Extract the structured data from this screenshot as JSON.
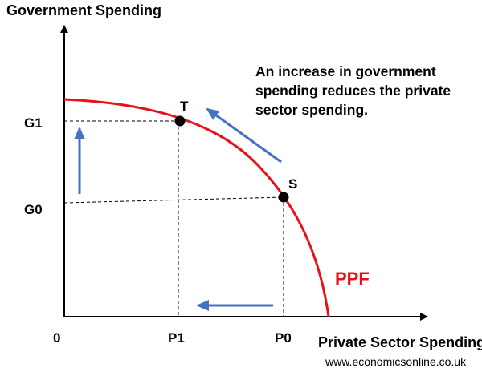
{
  "y_axis_title": "Government Spending",
  "x_axis_title": "Private Sector Spending",
  "annotation": "An increase in government spending reduces the private sector spending.",
  "curve_label": "PPF",
  "origin_label": "0",
  "y_ticks": {
    "g1": "G1",
    "g0": "G0"
  },
  "x_ticks": {
    "p1": "P1",
    "p0": "P0"
  },
  "points": {
    "t": "T",
    "s": "S"
  },
  "watermark": "www.economicsonline.co.uk",
  "colors": {
    "curve": "#e8101a",
    "arrows": "#4472c4",
    "axes": "#000000",
    "guides": "#000000"
  }
}
